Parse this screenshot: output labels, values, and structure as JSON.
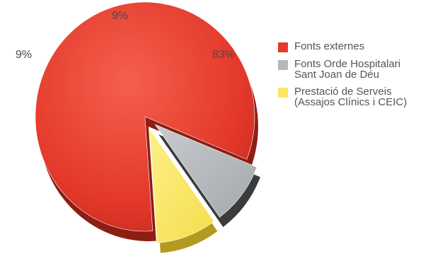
{
  "chart_data": {
    "type": "pie",
    "title": "",
    "categories": [
      "Fonts externes",
      "Fonts Orde Hospitalari\nSant Joan de Déu",
      "Prestació de Serveis\n(Assajos Clínics i CEIC)"
    ],
    "values": [
      83,
      9,
      9
    ],
    "value_labels": [
      "83%",
      "9%",
      "9%"
    ],
    "colors": [
      "#e8392b",
      "#b4b8bc",
      "#fbe764"
    ],
    "exploded": [
      false,
      true,
      true
    ],
    "style": "3d",
    "legend_placement": "right"
  }
}
